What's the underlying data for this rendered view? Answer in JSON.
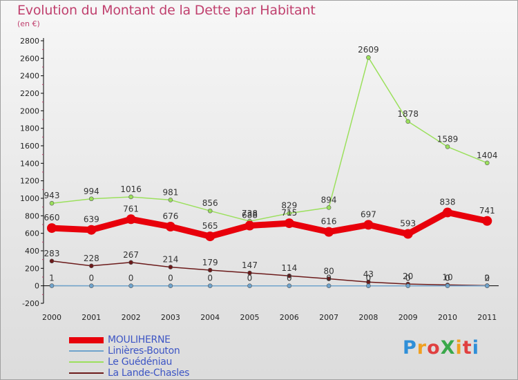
{
  "header": {
    "title": "Evolution du Montant de la Dette par Habitant",
    "subtitle": "(en €)"
  },
  "colors": {
    "title": "#c0406e",
    "legend_text": "#3d55c4",
    "axis": "#000000"
  },
  "logo": {
    "text": "ProXiti"
  },
  "chart_data": {
    "type": "line",
    "title": "Evolution du Montant de la Dette par Habitant",
    "subtitle": "(en €)",
    "xlabel": "",
    "ylabel": "",
    "x": [
      "2000",
      "2001",
      "2002",
      "2003",
      "2004",
      "2005",
      "2006",
      "2007",
      "2008",
      "2009",
      "2010",
      "2011"
    ],
    "ylim": [
      -200,
      2800
    ],
    "yticks": [
      -200,
      0,
      200,
      400,
      600,
      800,
      1000,
      1200,
      1400,
      1600,
      1800,
      2000,
      2200,
      2400,
      2600,
      2800
    ],
    "grid": false,
    "legend_position": "bottom-left",
    "series": [
      {
        "name": "MOULIHERNE",
        "color": "#e8000b",
        "values": [
          660,
          639,
          761,
          676,
          565,
          688,
          715,
          616,
          697,
          593,
          838,
          741
        ]
      },
      {
        "name": "Linières-Bouton",
        "color": "#6fa3cc",
        "values": [
          1,
          0,
          0,
          0,
          0,
          0,
          0,
          0,
          0,
          0,
          0,
          0
        ]
      },
      {
        "name": "Le Guédéniau",
        "color": "#9be05c",
        "values": [
          943,
          994,
          1016,
          981,
          856,
          738,
          829,
          894,
          2609,
          1878,
          1589,
          1404
        ]
      },
      {
        "name": "La Lande-Chasles",
        "color": "#6b1a1a",
        "values": [
          283,
          228,
          267,
          214,
          179,
          147,
          114,
          80,
          43,
          20,
          10,
          2
        ]
      }
    ]
  }
}
